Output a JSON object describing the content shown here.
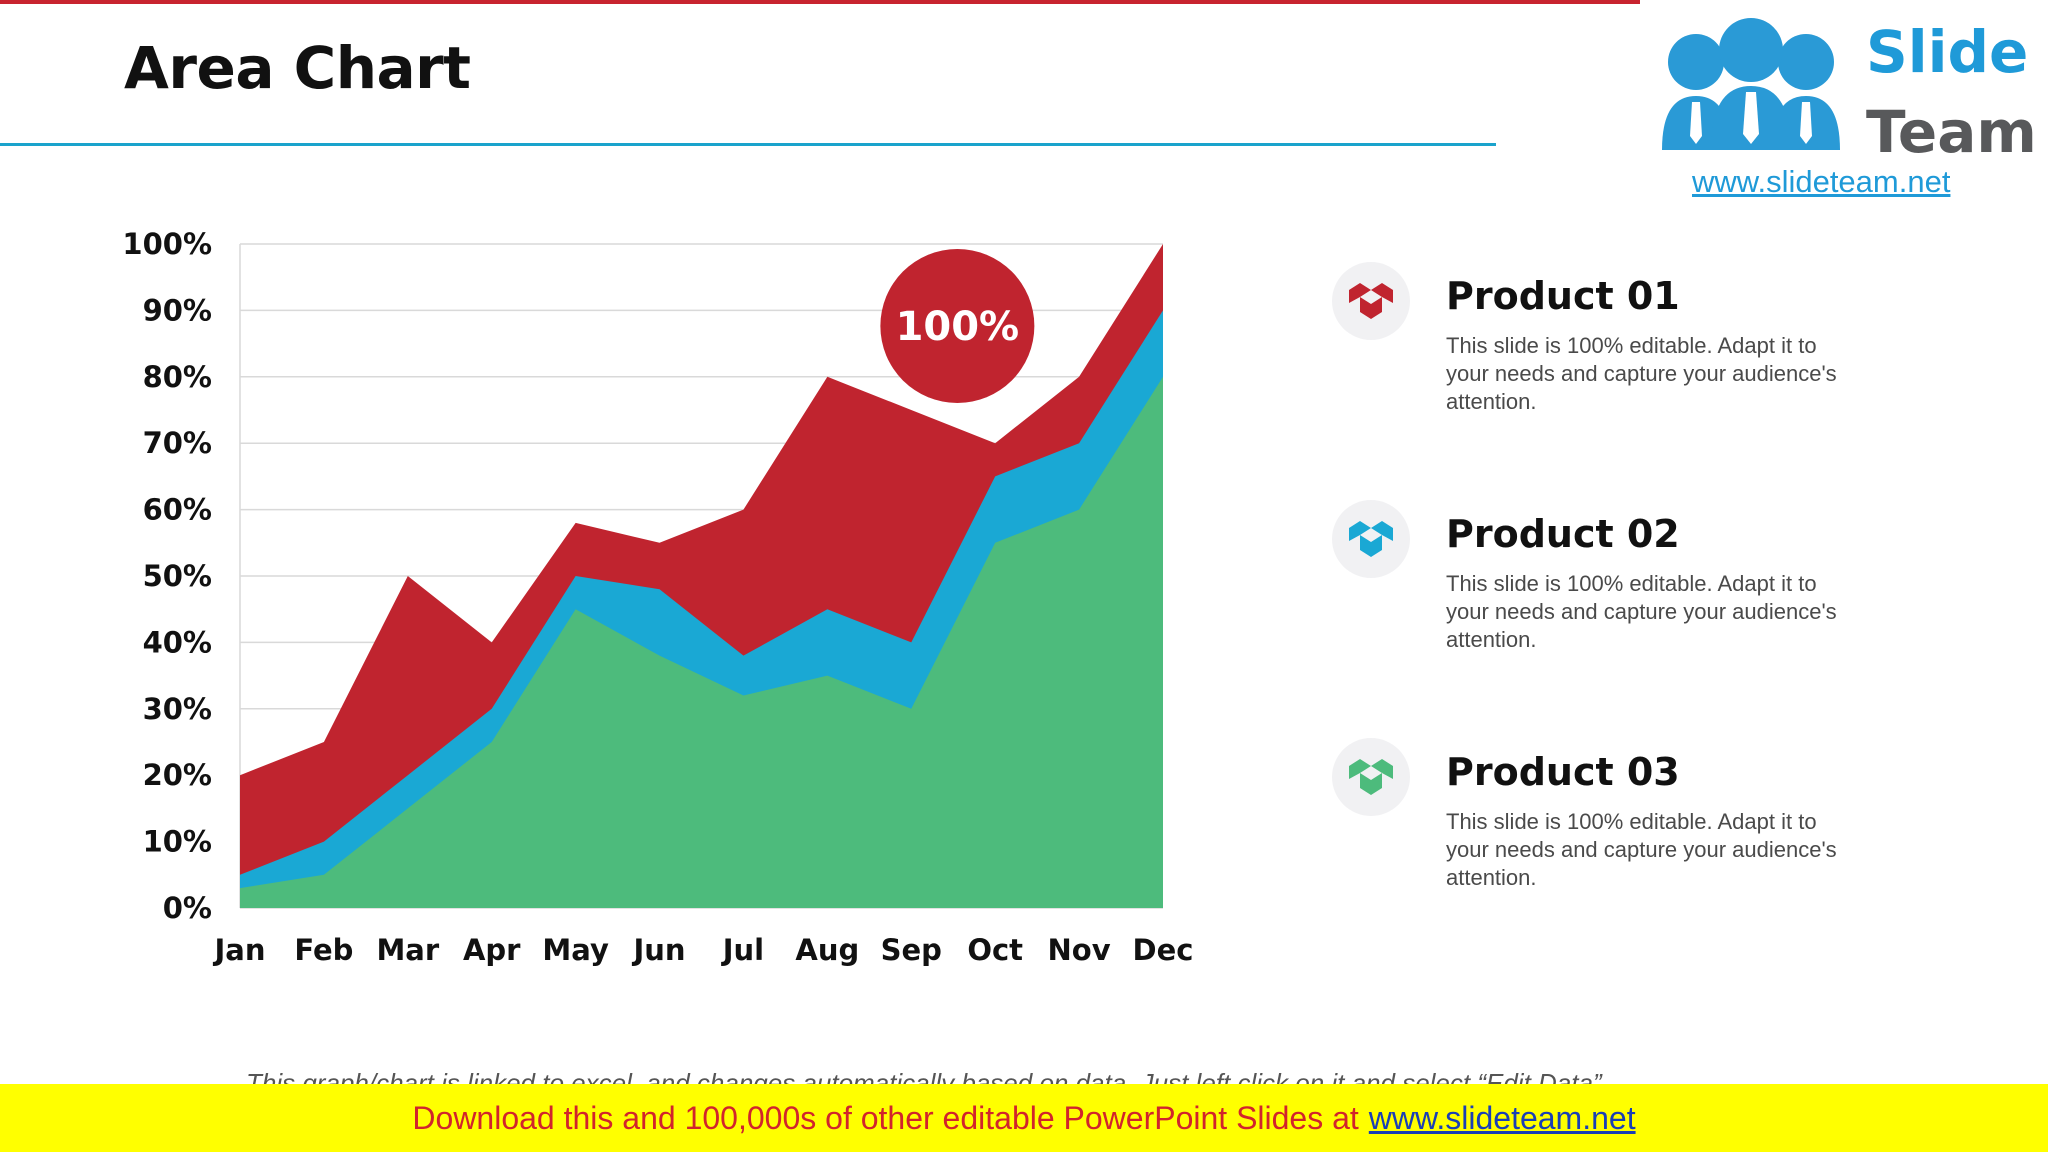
{
  "slide": {
    "title": "Area Chart",
    "footnote": "This graph/chart is linked to excel, and changes automatically based on data. Just left click on it and select “Edit Data”."
  },
  "logo": {
    "brand_top": "Slide",
    "brand_bottom": "Team",
    "url": "www.slideteam.net"
  },
  "banner": {
    "text": "Download this and 100,000s of other editable PowerPoint Slides at",
    "link": "www.slideteam.net"
  },
  "legend": {
    "items": [
      {
        "title": "Product 01",
        "description": "This slide is 100% editable. Adapt it to your needs and capture your audience's attention.",
        "color": "#c0242f",
        "icon": "box-icon"
      },
      {
        "title": "Product 02",
        "description": "This slide is 100% editable. Adapt it to your needs and capture your audience's attention.",
        "color": "#1aa8d4",
        "icon": "box-icon"
      },
      {
        "title": "Product 03",
        "description": "This slide is 100% editable. Adapt it to your needs and capture your audience's attention.",
        "color": "#4dbb7c",
        "icon": "box-icon"
      }
    ]
  },
  "chart_data": {
    "type": "area",
    "title": "",
    "xlabel": "",
    "ylabel": "",
    "categories": [
      "Jan",
      "Feb",
      "Mar",
      "Apr",
      "May",
      "Jun",
      "Jul",
      "Aug",
      "Sep",
      "Oct",
      "Nov",
      "Dec"
    ],
    "ylim": [
      0,
      100
    ],
    "yticks": [
      "0%",
      "10%",
      "20%",
      "30%",
      "40%",
      "50%",
      "60%",
      "70%",
      "80%",
      "90%",
      "100%"
    ],
    "grid": true,
    "series": [
      {
        "name": "Product 01",
        "color": "#c0242f",
        "values": [
          20,
          25,
          50,
          40,
          58,
          55,
          60,
          80,
          75,
          70,
          80,
          100
        ]
      },
      {
        "name": "Product 02",
        "color": "#1aa8d4",
        "values": [
          5,
          10,
          20,
          30,
          50,
          48,
          38,
          45,
          40,
          65,
          70,
          90
        ]
      },
      {
        "name": "Product 03",
        "color": "#4dbb7c",
        "values": [
          3,
          5,
          15,
          25,
          45,
          38,
          32,
          35,
          30,
          55,
          60,
          80
        ]
      }
    ],
    "annotation": {
      "text": "100%",
      "color": "#c0242f",
      "near_category": "Aug"
    }
  }
}
